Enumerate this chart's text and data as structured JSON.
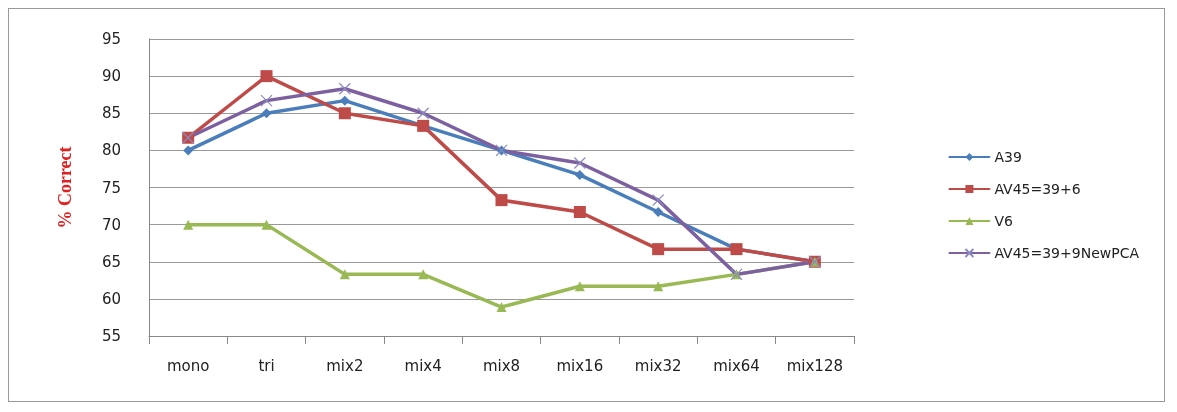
{
  "chart_data": {
    "type": "line",
    "ylabel": "% Correct",
    "categories": [
      "mono",
      "tri",
      "mix2",
      "mix4",
      "mix8",
      "mix16",
      "mix32",
      "mix64",
      "mix128"
    ],
    "series": [
      {
        "name": "A39",
        "color": "#4a7ebb",
        "marker": "diamond",
        "values": [
          80,
          85,
          86.7,
          83.3,
          80,
          76.7,
          71.7,
          66.7,
          65
        ]
      },
      {
        "name": "AV45=39+6",
        "color": "#be4b48",
        "marker": "square",
        "values": [
          81.7,
          90,
          85,
          83.3,
          73.3,
          71.7,
          66.7,
          66.7,
          65
        ]
      },
      {
        "name": "V6",
        "color": "#98b954",
        "marker": "triangle",
        "values": [
          70,
          70,
          63.3,
          63.3,
          58.9,
          61.7,
          61.7,
          63.3,
          65
        ]
      },
      {
        "name": "AV45=39+9NewPCA",
        "color": "#7d60a0",
        "marker": "cross",
        "values": [
          81.7,
          86.7,
          88.3,
          85,
          80,
          78.3,
          73.3,
          63.3,
          65
        ]
      }
    ],
    "ylim": [
      55,
      95
    ],
    "yticks": [
      55,
      60,
      65,
      70,
      75,
      80,
      85,
      90,
      95
    ],
    "grid": "y",
    "legend": "right",
    "line_style": "solid"
  }
}
